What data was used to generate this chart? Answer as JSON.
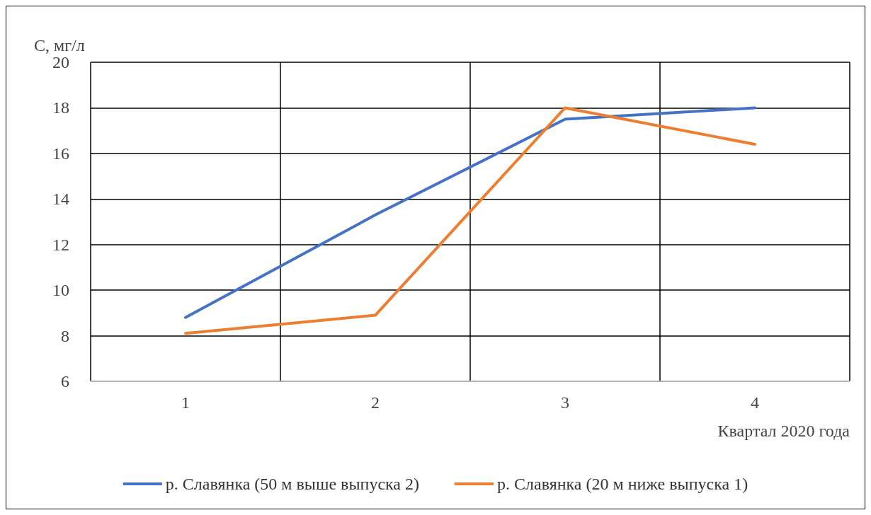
{
  "chart_data": {
    "type": "line",
    "ylabel": "С, мг/л",
    "xlabel": "Квартал 2020 года",
    "categories": [
      "1",
      "2",
      "3",
      "4"
    ],
    "series": [
      {
        "name": "р. Славянка (50 м выше выпуска 2)",
        "color": "#4472c4",
        "values": [
          8.8,
          13.3,
          17.5,
          18.0
        ]
      },
      {
        "name": "р. Славянка (20 м ниже выпуска 1)",
        "color": "#ed7d31",
        "values": [
          8.1,
          8.9,
          18.0,
          16.4
        ]
      }
    ],
    "ylim": [
      6,
      20
    ],
    "yticks": [
      6,
      8,
      10,
      12,
      14,
      16,
      18,
      20
    ],
    "grid": true,
    "legend": "bottom",
    "marker": "none",
    "line_style": "solid"
  }
}
